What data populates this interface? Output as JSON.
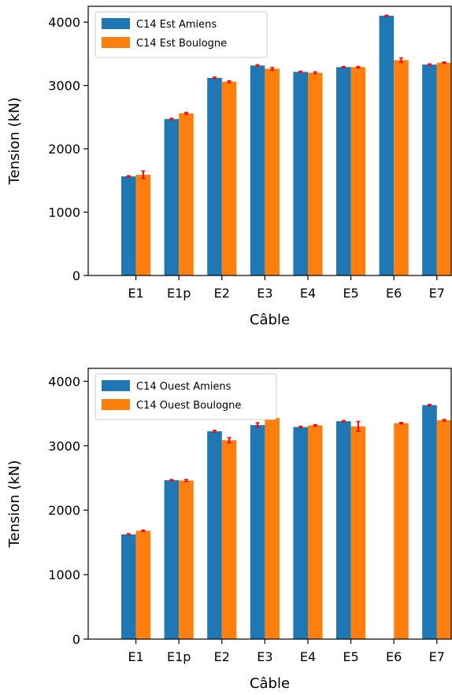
{
  "chart_data": [
    {
      "type": "bar",
      "categories": [
        "E1",
        "E1p",
        "E2",
        "E3",
        "E4",
        "E5",
        "E6",
        "E7"
      ],
      "xlabel": "Câble",
      "ylabel": "Tension (kN)",
      "ylim": [
        0,
        4250
      ],
      "yticks": [
        0,
        1000,
        2000,
        3000,
        4000
      ],
      "legend_position": "top-left",
      "series": [
        {
          "name": "C14 Est Amiens",
          "color": "#1f77b4",
          "values": [
            1565,
            2470,
            3120,
            3315,
            3215,
            3290,
            4100,
            3330
          ],
          "errors": [
            10,
            12,
            12,
            12,
            10,
            8,
            8,
            10
          ]
        },
        {
          "name": "C14 Est Boulogne",
          "color": "#ff7f0e",
          "values": [
            1590,
            2560,
            3060,
            3265,
            3200,
            3290,
            3400,
            3360
          ],
          "errors": [
            60,
            15,
            12,
            20,
            15,
            10,
            35,
            10
          ]
        }
      ]
    },
    {
      "type": "bar",
      "categories": [
        "E1",
        "E1p",
        "E2",
        "E3",
        "E4",
        "E5",
        "E6",
        "E7"
      ],
      "xlabel": "Câble",
      "ylabel": "Tension (kN)",
      "ylim": [
        0,
        4200
      ],
      "yticks": [
        0,
        1000,
        2000,
        3000,
        4000
      ],
      "legend_position": "top-left",
      "series": [
        {
          "name": "C14 Ouest Amiens",
          "color": "#1f77b4",
          "values": [
            1625,
            2465,
            3225,
            3320,
            3290,
            3380,
            null,
            3630
          ],
          "errors": [
            10,
            10,
            15,
            35,
            10,
            10,
            null,
            10
          ]
        },
        {
          "name": "C14 Ouest Boulogne",
          "color": "#ff7f0e",
          "values": [
            1680,
            2460,
            3085,
            3430,
            3315,
            3300,
            3350,
            3395
          ],
          "errors": [
            10,
            15,
            40,
            10,
            10,
            75,
            10,
            12
          ]
        }
      ]
    }
  ]
}
